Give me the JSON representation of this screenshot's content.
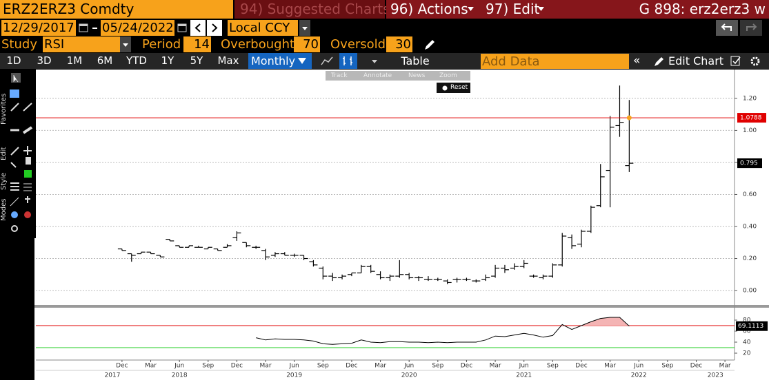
{
  "header": {
    "ticker": "ERZ2ERZ3 Comdty",
    "suggested": "94) Suggested Charts",
    "actions": "96) Actions",
    "edit": "97) Edit",
    "page": "G 898: erz2erz3 w"
  },
  "controls": {
    "start_date": "12/29/2017",
    "end_date": "05/24/2022",
    "currency": "Local CCY"
  },
  "study": {
    "label": "Study",
    "name": "RSI",
    "period_label": "Period",
    "period": 14,
    "overbought_label": "Overbought",
    "overbought": 70,
    "oversold_label": "Oversold",
    "oversold": 30
  },
  "toolbar": {
    "ranges": [
      "1D",
      "3D",
      "1M",
      "6M",
      "YTD",
      "1Y",
      "5Y",
      "Max"
    ],
    "frequency": "Monthly",
    "table": "Table",
    "add_data": "Add Data",
    "edit_chart": "Edit Chart"
  },
  "chart_tools": [
    "Track",
    "Annotate",
    "News",
    "Zoom"
  ],
  "reset": "Reset",
  "side_tabs": [
    "Favorites",
    "Edit",
    "Style",
    "Modes"
  ],
  "chart_data": [
    {
      "type": "ohlc",
      "color": "#000000",
      "x": [
        "2017-12",
        "2018-01",
        "2018-02",
        "2018-03",
        "2018-04",
        "2018-05",
        "2018-06",
        "2018-07",
        "2018-08",
        "2018-09",
        "2018-10",
        "2018-11",
        "2018-12",
        "2019-01",
        "2019-02",
        "2019-03",
        "2019-04",
        "2019-05",
        "2019-06",
        "2019-07",
        "2019-08",
        "2019-09",
        "2019-10",
        "2019-11",
        "2019-12",
        "2020-01",
        "2020-02",
        "2020-03",
        "2020-04",
        "2020-05",
        "2020-06",
        "2020-07",
        "2020-08",
        "2020-09",
        "2020-10",
        "2020-11",
        "2020-12",
        "2021-01",
        "2021-02",
        "2021-03",
        "2021-04",
        "2021-05",
        "2021-06",
        "2021-07",
        "2021-08",
        "2021-09",
        "2021-10",
        "2021-11",
        "2021-12",
        "2022-01",
        "2022-02",
        "2022-03",
        "2022-04",
        "2022-05"
      ],
      "open": [
        0.26,
        0.23,
        0.23,
        0.24,
        0.22,
        0.32,
        0.28,
        0.27,
        0.27,
        0.26,
        0.26,
        0.27,
        0.33,
        0.3,
        0.27,
        0.25,
        0.22,
        0.23,
        0.22,
        0.22,
        0.18,
        0.14,
        0.09,
        0.08,
        0.1,
        0.11,
        0.15,
        0.1,
        0.08,
        0.09,
        0.1,
        0.08,
        0.07,
        0.07,
        0.06,
        0.07,
        0.07,
        0.06,
        0.07,
        0.09,
        0.14,
        0.14,
        0.15,
        0.09,
        0.08,
        0.09,
        0.16,
        0.33,
        0.29,
        0.37,
        0.53,
        0.75,
        1.03,
        0.78
      ],
      "high": [
        0.26,
        0.23,
        0.24,
        0.24,
        0.22,
        0.32,
        0.28,
        0.28,
        0.28,
        0.27,
        0.26,
        0.29,
        0.37,
        0.3,
        0.28,
        0.26,
        0.24,
        0.24,
        0.23,
        0.22,
        0.19,
        0.15,
        0.11,
        0.1,
        0.11,
        0.16,
        0.16,
        0.12,
        0.1,
        0.19,
        0.11,
        0.09,
        0.09,
        0.08,
        0.07,
        0.08,
        0.08,
        0.07,
        0.1,
        0.16,
        0.16,
        0.17,
        0.19,
        0.1,
        0.1,
        0.17,
        0.36,
        0.35,
        0.38,
        0.53,
        0.79,
        1.09,
        1.28,
        1.19
      ],
      "low": [
        0.25,
        0.18,
        0.23,
        0.23,
        0.21,
        0.31,
        0.27,
        0.27,
        0.27,
        0.26,
        0.25,
        0.27,
        0.31,
        0.27,
        0.26,
        0.19,
        0.21,
        0.22,
        0.21,
        0.19,
        0.15,
        0.07,
        0.06,
        0.07,
        0.09,
        0.11,
        0.11,
        0.07,
        0.06,
        0.08,
        0.07,
        0.06,
        0.06,
        0.06,
        0.04,
        0.05,
        0.06,
        0.05,
        0.06,
        0.08,
        0.11,
        0.13,
        0.14,
        0.08,
        0.07,
        0.08,
        0.15,
        0.26,
        0.27,
        0.36,
        0.52,
        0.52,
        0.96,
        0.74
      ],
      "close": [
        0.25,
        0.22,
        0.24,
        0.23,
        0.21,
        0.31,
        0.27,
        0.28,
        0.27,
        0.27,
        0.25,
        0.28,
        0.36,
        0.28,
        0.27,
        0.21,
        0.23,
        0.22,
        0.22,
        0.2,
        0.16,
        0.09,
        0.08,
        0.09,
        0.11,
        0.15,
        0.12,
        0.08,
        0.09,
        0.1,
        0.08,
        0.08,
        0.07,
        0.07,
        0.05,
        0.07,
        0.07,
        0.06,
        0.08,
        0.14,
        0.13,
        0.15,
        0.17,
        0.09,
        0.09,
        0.16,
        0.34,
        0.28,
        0.37,
        0.52,
        0.71,
        1.02,
        1.05,
        0.795
      ],
      "hline": {
        "value": 1.0788,
        "color": "#e00000"
      },
      "xlim": [
        "2017-03",
        "2023-04"
      ],
      "ylim": [
        -0.09,
        1.38
      ],
      "yticks": [
        {
          "value": 0,
          "label": "0.00"
        },
        {
          "value": 0.2,
          "label": "0.20"
        },
        {
          "value": 0.4,
          "label": "0.40"
        },
        {
          "value": 0.6,
          "label": "0.60"
        },
        {
          "value": 0.8,
          "label": "0.80"
        },
        {
          "value": 1,
          "label": "1.00"
        },
        {
          "value": 1.2,
          "label": "1.20"
        }
      ],
      "grid": true
    },
    {
      "type": "line",
      "color": "#000000",
      "fill_color": "#f4b4b4",
      "overbought_color": "#e00000",
      "oversold_color": "#22cc22",
      "x": [
        "2017-12",
        "2018-01",
        "2018-02",
        "2018-03",
        "2018-04",
        "2018-05",
        "2018-06",
        "2018-07",
        "2018-08",
        "2018-09",
        "2018-10",
        "2018-11",
        "2018-12",
        "2019-01",
        "2019-02",
        "2019-03",
        "2019-04",
        "2019-05",
        "2019-06",
        "2019-07",
        "2019-08",
        "2019-09",
        "2019-10",
        "2019-11",
        "2019-12",
        "2020-01",
        "2020-02",
        "2020-03",
        "2020-04",
        "2020-05",
        "2020-06",
        "2020-07",
        "2020-08",
        "2020-09",
        "2020-10",
        "2020-11",
        "2020-12",
        "2021-01",
        "2021-02",
        "2021-03",
        "2021-04",
        "2021-05",
        "2021-06",
        "2021-07",
        "2021-08",
        "2021-09",
        "2021-10",
        "2021-11",
        "2021-12",
        "2022-01",
        "2022-02",
        "2022-03",
        "2022-04",
        "2022-05"
      ],
      "values": [
        null,
        null,
        null,
        null,
        null,
        null,
        null,
        null,
        null,
        null,
        null,
        null,
        null,
        null,
        48,
        44,
        46,
        45,
        45,
        44,
        42,
        37,
        36,
        37,
        38,
        44,
        40,
        39,
        41,
        41,
        40,
        40,
        39,
        40,
        39,
        40,
        40,
        40,
        44,
        51,
        50,
        53,
        56,
        53,
        49,
        52,
        72,
        63,
        70,
        77,
        83,
        85,
        85,
        69.1113
      ],
      "xlim": [
        "2017-03",
        "2023-04"
      ],
      "ylim": [
        7.5,
        102.5
      ],
      "yticks": [
        20,
        40,
        60,
        80
      ],
      "xticks": [
        {
          "value": "2017-12",
          "label": "Dec"
        },
        {
          "value": "2018-03",
          "label": "Mar"
        },
        {
          "value": "2018-06",
          "label": "Jun"
        },
        {
          "value": "2018-09",
          "label": "Sep"
        },
        {
          "value": "2018-12",
          "label": "Dec"
        },
        {
          "value": "2019-03",
          "label": "Mar"
        },
        {
          "value": "2019-06",
          "label": "Jun"
        },
        {
          "value": "2019-09",
          "label": "Sep"
        },
        {
          "value": "2019-12",
          "label": "Dec"
        },
        {
          "value": "2020-03",
          "label": "Mar"
        },
        {
          "value": "2020-06",
          "label": "Jun"
        },
        {
          "value": "2020-09",
          "label": "Sep"
        },
        {
          "value": "2020-12",
          "label": "Dec"
        },
        {
          "value": "2021-03",
          "label": "Mar"
        },
        {
          "value": "2021-06",
          "label": "Jun"
        },
        {
          "value": "2021-09",
          "label": "Sep"
        },
        {
          "value": "2021-12",
          "label": "Dec"
        },
        {
          "value": "2022-03",
          "label": "Mar"
        },
        {
          "value": "2022-06",
          "label": "Jun"
        },
        {
          "value": "2022-09",
          "label": "Sep"
        },
        {
          "value": "2022-12",
          "label": "Dec"
        },
        {
          "value": "2023-03",
          "label": "Mar"
        }
      ],
      "year_ticks": [
        {
          "value": "2017-11",
          "label": "2017"
        },
        {
          "value": "2018-06",
          "label": "2018"
        },
        {
          "value": "2019-06",
          "label": "2019"
        },
        {
          "value": "2020-06",
          "label": "2020"
        },
        {
          "value": "2021-06",
          "label": "2021"
        },
        {
          "value": "2022-06",
          "label": "2022"
        },
        {
          "value": "2023-02",
          "label": "2023"
        }
      ]
    }
  ]
}
